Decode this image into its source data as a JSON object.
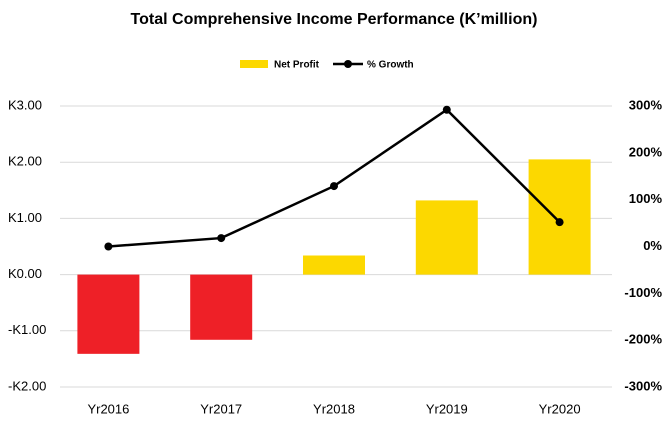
{
  "chart_data": {
    "type": "combo",
    "title": "Total Comprehensive Income Performance (K’million)",
    "categories": [
      "Yr2016",
      "Yr2017",
      "Yr2018",
      "Yr2019",
      "Yr2020"
    ],
    "series": [
      {
        "name": "Net Profit",
        "type": "bar",
        "axis": "y",
        "color": "#fcd800",
        "negative_color": "#ee2027",
        "values": [
          -1.41,
          -1.16,
          0.34,
          1.32,
          2.05
        ]
      },
      {
        "name": "% Growth",
        "type": "line",
        "axis": "y2",
        "color": "#000000",
        "values": [
          0,
          18,
          129,
          292,
          52
        ]
      }
    ],
    "ylim": [
      -2,
      3
    ],
    "yticks": [
      {
        "value": 3,
        "label": "K3.00"
      },
      {
        "value": 2,
        "label": "K2.00"
      },
      {
        "value": 1,
        "label": "K1.00"
      },
      {
        "value": 0,
        "label": "K0.00"
      },
      {
        "value": -1,
        "label": "-K1.00"
      },
      {
        "value": -2,
        "label": "-K2.00"
      }
    ],
    "y2lim": [
      -300,
      300
    ],
    "y2ticks": [
      {
        "value": 300,
        "label": "300%"
      },
      {
        "value": 200,
        "label": "200%"
      },
      {
        "value": 100,
        "label": "100%"
      },
      {
        "value": 0,
        "label": "0%"
      },
      {
        "value": -100,
        "label": "-100%"
      },
      {
        "value": -200,
        "label": "-200%"
      },
      {
        "value": -300,
        "label": "-300%"
      }
    ],
    "grid": true,
    "legend": "top"
  }
}
